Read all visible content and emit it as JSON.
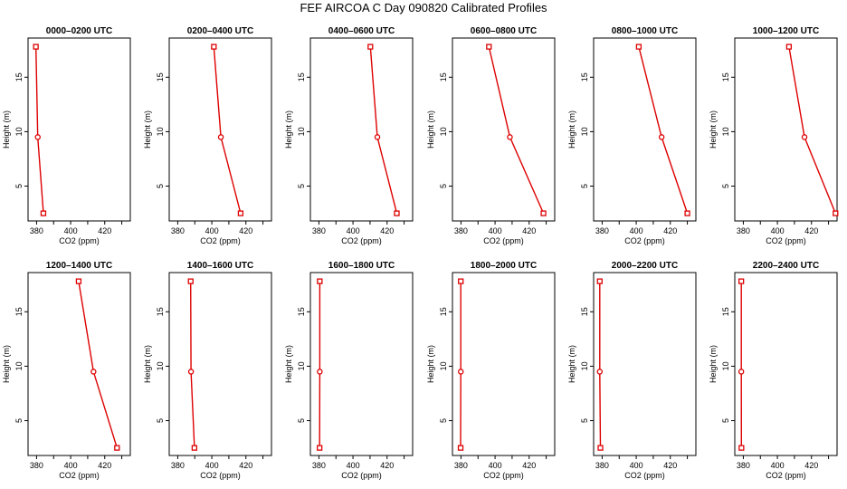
{
  "title": "FEF AIRCOA C  Day 090820  Calibrated Profiles",
  "chart_data": {
    "type": "line",
    "xlabel": "CO2 (ppm)",
    "ylabel": "Height (m)",
    "xlim": [
      375,
      435
    ],
    "ylim": [
      1.8,
      18.6
    ],
    "xticks": [
      380,
      400,
      420
    ],
    "yticks": [
      5,
      10,
      15
    ],
    "heights": [
      17.8,
      9.5,
      2.5
    ],
    "line_color": "#dd0000",
    "panels": [
      {
        "title": "0000–0200 UTC",
        "values": [
          379.6,
          380.7,
          384.0
        ]
      },
      {
        "title": "0200–0400 UTC",
        "values": [
          401.2,
          405.3,
          416.9
        ]
      },
      {
        "title": "0400–0600 UTC",
        "values": [
          410.2,
          414.3,
          425.7
        ]
      },
      {
        "title": "0600–0800 UTC",
        "values": [
          396.4,
          408.7,
          428.4
        ]
      },
      {
        "title": "0800–1000 UTC",
        "values": [
          401.5,
          414.9,
          430.0
        ]
      },
      {
        "title": "1000–1200 UTC",
        "values": [
          406.8,
          415.9,
          434.1
        ]
      },
      {
        "title": "1200–1400 UTC",
        "values": [
          404.7,
          413.4,
          427.2
        ]
      },
      {
        "title": "1400–1600 UTC",
        "values": [
          387.6,
          387.8,
          389.8
        ]
      },
      {
        "title": "1600–1800 UTC",
        "values": [
          380.5,
          380.5,
          380.4
        ]
      },
      {
        "title": "1800–2000 UTC",
        "values": [
          379.9,
          379.9,
          379.8
        ]
      },
      {
        "title": "2000–2200 UTC",
        "values": [
          378.6,
          378.6,
          379.0
        ]
      },
      {
        "title": "2200–2400 UTC",
        "values": [
          378.8,
          378.8,
          378.9
        ]
      }
    ]
  }
}
